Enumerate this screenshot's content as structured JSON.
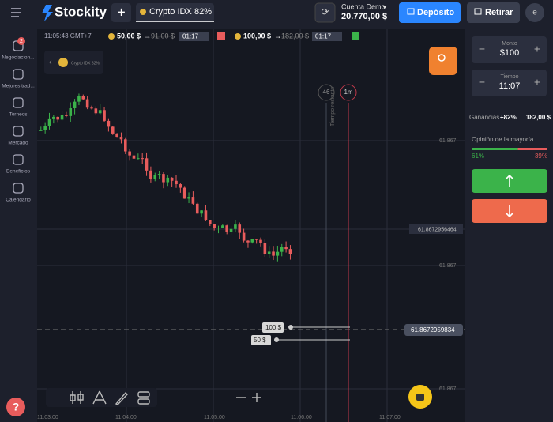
{
  "header": {
    "brand": "Stockity",
    "asset": "Crypto IDX",
    "asset_payout": "82%",
    "account_label": "Cuenta Demo",
    "balance": "20.770,00 $",
    "deposit": "Depósito",
    "withdraw": "Retirar",
    "avatar": "e"
  },
  "sidebar": {
    "badge": "2",
    "items": [
      "Negociacion...",
      "Mejores trad...",
      "Torneos",
      "Mercado",
      "Beneficios",
      "Calendario"
    ]
  },
  "chart": {
    "clock": "11:05:43 GMT+7",
    "asset_caption": "Crypto IDX 82%",
    "trades": [
      {
        "amount": "50,00 $",
        "payout": "91,00 $",
        "timer": "01:17"
      },
      {
        "amount": "100,00 $",
        "payout": "182,00 $",
        "timer": "01:17"
      }
    ],
    "countdown": "46",
    "timeframe": "1m",
    "expiry_caption": "Tiempo restante",
    "price_labels": [
      "61.8672959834",
      "61.8672956464",
      "61.867",
      "61.867",
      "61.867"
    ],
    "time_labels": [
      "11:03:00",
      "11:04:00",
      "11:05:00",
      "11:06:00",
      "11:07:00"
    ],
    "order_labels": [
      "100 $",
      "50 $"
    ]
  },
  "panel": {
    "amount_label": "Monto",
    "amount": "$100",
    "time_label": "Tiempo",
    "time": "11:07",
    "profit_label": "Ganancias",
    "profit_pct": "+82%",
    "profit_amount": "182,00 $",
    "opinion_label": "Opinión de la mayoría",
    "opinion_up": {
      "value": 61,
      "label": "61%"
    },
    "opinion_down": {
      "value": 39,
      "label": "39%"
    }
  }
}
